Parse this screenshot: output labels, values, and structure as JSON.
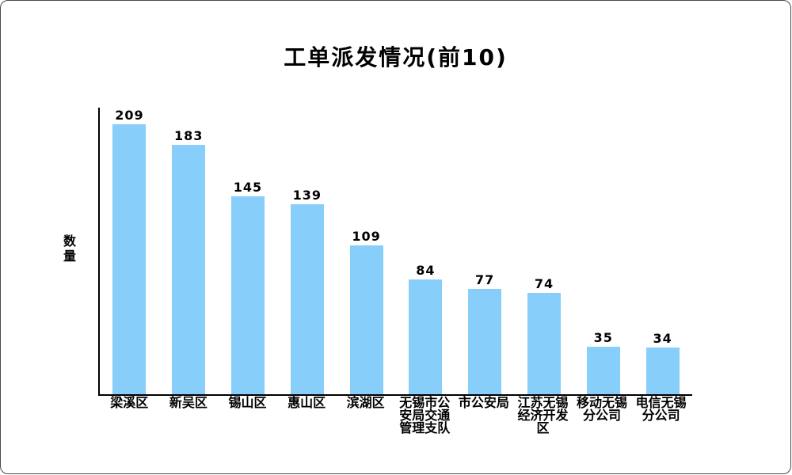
{
  "window": {
    "background": "#ffffff",
    "border_color": "#4a4a4a"
  },
  "chart_data": {
    "type": "bar",
    "title": "工单派发情况(前10)",
    "ylabel": "数量",
    "xlabel": "",
    "categories": [
      "梁溪区",
      "新吴区",
      "锡山区",
      "惠山区",
      "滨湖区",
      "无锡市公安局交通管理支队",
      "市公安局",
      "江苏无锡经济开发区",
      "移动无锡分公司",
      "电信无锡分公司"
    ],
    "values": [
      209,
      183,
      145,
      139,
      109,
      84,
      77,
      74,
      35,
      34
    ],
    "bar_color": "#87CEFA",
    "axis_color": "#000000",
    "text_color": "#000000",
    "ylim": [
      0,
      210
    ],
    "grid": false,
    "legend": false,
    "value_labels_shown": true
  }
}
